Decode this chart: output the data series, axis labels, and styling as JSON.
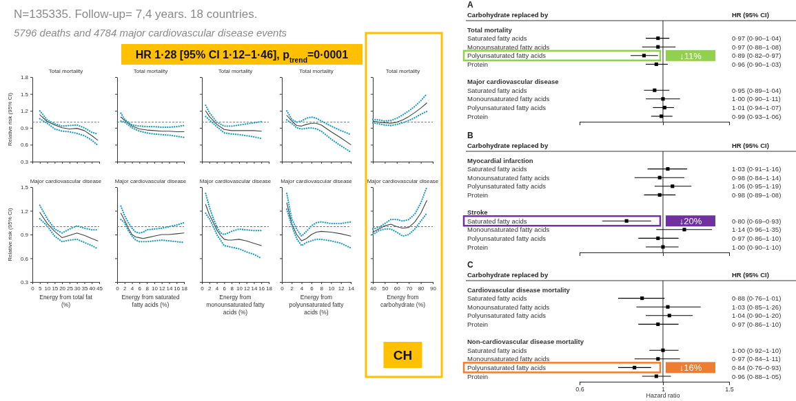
{
  "chart_data": [
    {
      "type": "line",
      "title": "Total mortality",
      "ylabel": "Relative risk (95% CI)",
      "tick_labels": "y",
      "annotations": [
        "N=135335. Follow-up= 7,4 years.  18 countries.",
        "5796 deaths and 4784 major cardiovascular disease events"
      ],
      "x": [
        5,
        10,
        15,
        20,
        25,
        30,
        35,
        40,
        44
      ],
      "series": [
        {
          "color": "#404040",
          "line_style": "solid",
          "values": [
            1.13,
            1.01,
            0.95,
            0.9,
            0.88,
            0.89,
            0.85,
            0.76,
            0.68
          ]
        },
        {
          "color": "#1b9dc4",
          "line_style": "dotted",
          "values": [
            1.2,
            1.04,
            0.97,
            0.93,
            0.94,
            0.95,
            0.9,
            0.82,
            0.79
          ]
        },
        {
          "color": "#1b9dc4",
          "line_style": "dotted",
          "values": [
            1.06,
            0.98,
            0.88,
            0.84,
            0.83,
            0.8,
            0.76,
            0.68,
            0.59
          ]
        }
      ],
      "xlim": [
        0,
        45
      ],
      "xticks": [
        0,
        5,
        10,
        15,
        20,
        25,
        30,
        35,
        40,
        45
      ],
      "ylim": [
        0.3,
        1.8
      ],
      "yticks": [
        0.3,
        0.6,
        0.9,
        1.2,
        1.5,
        1.8
      ],
      "ref_lines": [
        {
          "axis": "y",
          "value": 1,
          "line_style": "dashed",
          "color": "#5a6b78"
        }
      ]
    },
    {
      "type": "line",
      "title": "Total mortality",
      "tick_labels": false,
      "x": [
        1,
        2,
        4,
        6,
        8,
        10,
        12,
        14,
        16,
        18
      ],
      "series": [
        {
          "color": "#404040",
          "line_style": "solid",
          "values": [
            1.09,
            1.03,
            0.93,
            0.88,
            0.86,
            0.85,
            0.84,
            0.84,
            0.83,
            0.83
          ]
        },
        {
          "color": "#1b9dc4",
          "line_style": "dotted",
          "values": [
            1.16,
            1.05,
            0.95,
            0.93,
            0.92,
            0.92,
            0.91,
            0.91,
            0.92,
            0.94
          ]
        },
        {
          "color": "#1b9dc4",
          "line_style": "dotted",
          "values": [
            1.02,
            1.0,
            0.9,
            0.84,
            0.81,
            0.79,
            0.78,
            0.77,
            0.75,
            0.73
          ]
        }
      ],
      "xlim": [
        0,
        18
      ],
      "xticks": [
        0,
        2,
        4,
        6,
        8,
        10,
        12,
        14,
        16,
        18
      ],
      "ylim": [
        0.3,
        1.8
      ],
      "yticks": [
        0.3,
        0.6,
        0.9,
        1.2,
        1.5,
        1.8
      ],
      "ref_lines": [
        {
          "axis": "y",
          "value": 1,
          "line_style": "dashed",
          "color": "#5a6b78"
        }
      ]
    },
    {
      "type": "line",
      "title": "Total mortality",
      "tick_labels": false,
      "x": [
        1,
        2,
        4,
        6,
        8,
        10,
        12,
        14,
        16
      ],
      "series": [
        {
          "color": "#404040",
          "line_style": "solid",
          "values": [
            1.2,
            1.1,
            0.96,
            0.87,
            0.85,
            0.85,
            0.85,
            0.85,
            0.84
          ]
        },
        {
          "color": "#1b9dc4",
          "line_style": "dotted",
          "values": [
            1.3,
            1.17,
            1.0,
            0.93,
            0.93,
            0.95,
            0.97,
            0.99,
            1.01
          ]
        },
        {
          "color": "#1b9dc4",
          "line_style": "dotted",
          "values": [
            1.1,
            1.04,
            0.92,
            0.81,
            0.79,
            0.78,
            0.76,
            0.74,
            0.71
          ]
        }
      ],
      "xlim": [
        0,
        18
      ],
      "xticks": [
        0,
        2,
        4,
        6,
        8,
        10,
        12,
        14,
        16,
        18
      ],
      "ylim": [
        0.3,
        1.8
      ],
      "yticks": [
        0.3,
        0.6,
        0.9,
        1.2,
        1.5,
        1.8
      ],
      "ref_lines": [
        {
          "axis": "y",
          "value": 1,
          "line_style": "dashed",
          "color": "#5a6b78"
        }
      ]
    },
    {
      "type": "line",
      "title": "Total mortality",
      "tick_labels": false,
      "x": [
        1,
        2,
        3,
        4,
        5,
        6,
        7,
        8,
        10,
        12,
        14
      ],
      "series": [
        {
          "color": "#404040",
          "line_style": "solid",
          "values": [
            1.12,
            1.02,
            0.94,
            0.93,
            0.96,
            0.98,
            0.98,
            0.95,
            0.83,
            0.72,
            0.6
          ]
        },
        {
          "color": "#1b9dc4",
          "line_style": "dotted",
          "values": [
            1.2,
            1.05,
            1.0,
            1.02,
            1.07,
            1.09,
            1.07,
            1.02,
            0.93,
            0.85,
            0.78
          ]
        },
        {
          "color": "#1b9dc4",
          "line_style": "dotted",
          "values": [
            1.04,
            0.98,
            0.9,
            0.88,
            0.89,
            0.9,
            0.88,
            0.84,
            0.7,
            0.58,
            0.47
          ]
        }
      ],
      "xlim": [
        0,
        14
      ],
      "xticks": [
        0,
        2,
        4,
        6,
        8,
        10,
        12,
        14
      ],
      "ylim": [
        0.3,
        1.8
      ],
      "yticks": [
        0.3,
        0.6,
        0.9,
        1.2,
        1.5,
        1.8
      ],
      "ref_lines": [
        {
          "axis": "y",
          "value": 1,
          "line_style": "dashed",
          "color": "#5a6b78"
        }
      ]
    },
    {
      "type": "line",
      "title": "Total mortality",
      "tick_labels": false,
      "annotations": [
        "HR 1·28 [95% CI 1·12–1·46], p$_{trend}$=0·0001"
      ],
      "x": [
        40,
        45,
        50,
        55,
        60,
        65,
        70,
        75,
        80,
        85
      ],
      "series": [
        {
          "color": "#404040",
          "line_style": "solid",
          "values": [
            1.02,
            1.0,
            0.99,
            0.98,
            1.0,
            1.04,
            1.1,
            1.17,
            1.25,
            1.34
          ]
        },
        {
          "color": "#1b9dc4",
          "line_style": "dotted",
          "values": [
            1.05,
            1.04,
            1.02,
            1.03,
            1.07,
            1.13,
            1.2,
            1.28,
            1.38,
            1.5
          ]
        },
        {
          "color": "#1b9dc4",
          "line_style": "dotted",
          "values": [
            0.99,
            0.97,
            0.95,
            0.94,
            0.96,
            0.99,
            1.03,
            1.08,
            1.14,
            1.19
          ]
        }
      ],
      "xlim": [
        40,
        90
      ],
      "xticks": [
        40,
        50,
        60,
        70,
        80,
        90
      ],
      "ylim": [
        0.3,
        1.8
      ],
      "yticks": [
        0.3,
        0.6,
        0.9,
        1.2,
        1.5,
        1.8
      ],
      "ref_lines": [
        {
          "axis": "y",
          "value": 1,
          "line_style": "dashed",
          "color": "#5a6b78"
        }
      ]
    },
    {
      "type": "line",
      "title": "Major cardiovascular disease",
      "ylabel": "Relative risk (95% CI)",
      "xlabel": "Energy from total fat (%)",
      "x": [
        5,
        10,
        15,
        20,
        25,
        30,
        35,
        40,
        44
      ],
      "series": [
        {
          "color": "#404040",
          "line_style": "solid",
          "values": [
            1.18,
            1.04,
            0.94,
            0.86,
            0.89,
            0.92,
            0.89,
            0.85,
            0.82
          ]
        },
        {
          "color": "#1b9dc4",
          "line_style": "dotted",
          "values": [
            1.27,
            1.1,
            0.97,
            0.92,
            0.97,
            1.01,
            0.98,
            0.96,
            0.96
          ]
        },
        {
          "color": "#1b9dc4",
          "line_style": "dotted",
          "values": [
            1.1,
            1.01,
            0.88,
            0.81,
            0.83,
            0.84,
            0.8,
            0.76,
            0.72
          ]
        }
      ],
      "xlim": [
        0,
        45
      ],
      "xticks": [
        0,
        5,
        10,
        15,
        20,
        25,
        30,
        35,
        40,
        45
      ],
      "ylim": [
        0.3,
        1.5
      ],
      "yticks": [
        0.3,
        0.6,
        0.9,
        1.2,
        1.5
      ],
      "ref_lines": [
        {
          "axis": "y",
          "value": 1,
          "line_style": "dashed",
          "color": "#5a6b78"
        }
      ]
    },
    {
      "type": "line",
      "title": "Major cardiovascular disease",
      "xlabel": "Energy from saturated fatty acids (%)",
      "tick_labels": "x",
      "x": [
        1,
        2,
        3,
        4,
        5,
        6,
        7,
        8,
        10,
        12,
        14,
        16,
        18
      ],
      "series": [
        {
          "color": "#404040",
          "line_style": "solid",
          "values": [
            1.17,
            1.08,
            0.98,
            0.9,
            0.87,
            0.86,
            0.85,
            0.86,
            0.88,
            0.9,
            0.9,
            0.91,
            0.92
          ]
        },
        {
          "color": "#1b9dc4",
          "line_style": "dotted",
          "values": [
            1.26,
            1.14,
            1.05,
            0.98,
            0.93,
            0.92,
            0.93,
            0.96,
            0.97,
            0.98,
            1.0,
            1.02,
            1.05
          ]
        },
        {
          "color": "#1b9dc4",
          "line_style": "dotted",
          "values": [
            1.09,
            1.05,
            0.95,
            0.88,
            0.83,
            0.81,
            0.81,
            0.81,
            0.82,
            0.83,
            0.82,
            0.81,
            0.8
          ]
        }
      ],
      "xlim": [
        0,
        18
      ],
      "xticks": [
        0,
        2,
        4,
        6,
        8,
        10,
        12,
        14,
        16,
        18
      ],
      "ylim": [
        0.3,
        1.5
      ],
      "yticks": [
        0.3,
        0.6,
        0.9,
        1.2,
        1.5
      ],
      "ref_lines": [
        {
          "axis": "y",
          "value": 1,
          "line_style": "dashed",
          "color": "#5a6b78"
        }
      ]
    },
    {
      "type": "line",
      "title": "Major cardiovascular disease",
      "xlabel": "Energy from monounsaturated fatty acids (%)",
      "tick_labels": "x",
      "x": [
        1,
        2,
        3,
        4,
        5,
        6,
        7,
        8,
        10,
        12,
        14,
        16
      ],
      "series": [
        {
          "color": "#404040",
          "line_style": "solid",
          "values": [
            1.28,
            1.15,
            1.06,
            0.96,
            0.89,
            0.84,
            0.83,
            0.83,
            0.84,
            0.82,
            0.79,
            0.76
          ]
        },
        {
          "color": "#1b9dc4",
          "line_style": "dotted",
          "values": [
            1.42,
            1.25,
            1.11,
            1.0,
            0.92,
            0.9,
            0.92,
            0.94,
            0.97,
            0.96,
            0.95,
            0.95
          ]
        },
        {
          "color": "#1b9dc4",
          "line_style": "dotted",
          "values": [
            1.17,
            1.1,
            1.01,
            0.9,
            0.83,
            0.76,
            0.75,
            0.74,
            0.72,
            0.68,
            0.65,
            0.6
          ]
        }
      ],
      "xlim": [
        0,
        18
      ],
      "xticks": [
        0,
        2,
        4,
        6,
        8,
        10,
        12,
        14,
        16,
        18
      ],
      "ylim": [
        0.3,
        1.5
      ],
      "yticks": [
        0.3,
        0.6,
        0.9,
        1.2,
        1.5
      ],
      "ref_lines": [
        {
          "axis": "y",
          "value": 1,
          "line_style": "dashed",
          "color": "#5a6b78"
        }
      ]
    },
    {
      "type": "line",
      "title": "Major cardiovascular disease",
      "xlabel": "Energy from polyunsaturated fatty acids (%)",
      "tick_labels": "x",
      "x": [
        1,
        2,
        3,
        4,
        5,
        6,
        7,
        8,
        10,
        12,
        14
      ],
      "series": [
        {
          "color": "#404040",
          "line_style": "solid",
          "values": [
            1.3,
            1.04,
            0.9,
            0.82,
            0.85,
            0.9,
            0.93,
            0.94,
            0.93,
            0.91,
            0.88
          ]
        },
        {
          "color": "#1b9dc4",
          "line_style": "dotted",
          "values": [
            1.42,
            1.1,
            0.97,
            0.88,
            0.94,
            1.01,
            1.05,
            1.06,
            1.04,
            1.04,
            1.06
          ]
        },
        {
          "color": "#1b9dc4",
          "line_style": "dotted",
          "values": [
            1.22,
            1.01,
            0.85,
            0.76,
            0.8,
            0.82,
            0.84,
            0.84,
            0.82,
            0.79,
            0.73
          ]
        }
      ],
      "xlim": [
        0,
        14
      ],
      "xticks": [
        0,
        2,
        4,
        6,
        8,
        10,
        12,
        14
      ],
      "ylim": [
        0.3,
        1.5
      ],
      "yticks": [
        0.3,
        0.6,
        0.9,
        1.2,
        1.5
      ],
      "ref_lines": [
        {
          "axis": "y",
          "value": 1,
          "line_style": "dashed",
          "color": "#5a6b78"
        }
      ]
    },
    {
      "type": "line",
      "title": "Major cardiovascular disease",
      "xlabel": "Energy from carbohydrate (%)",
      "tick_labels": "x",
      "annotations": [
        "CH"
      ],
      "x": [
        40,
        45,
        50,
        55,
        60,
        65,
        70,
        75,
        80,
        85
      ],
      "series": [
        {
          "color": "#404040",
          "line_style": "solid",
          "values": [
            0.93,
            0.97,
            1.01,
            1.03,
            1.0,
            0.98,
            0.99,
            1.06,
            1.17,
            1.33
          ]
        },
        {
          "color": "#1b9dc4",
          "line_style": "dotted",
          "values": [
            0.97,
            0.99,
            1.04,
            1.09,
            1.09,
            1.07,
            1.09,
            1.16,
            1.3,
            1.5
          ]
        },
        {
          "color": "#1b9dc4",
          "line_style": "dotted",
          "values": [
            0.9,
            0.95,
            0.97,
            0.97,
            0.93,
            0.88,
            0.9,
            0.97,
            1.07,
            1.17
          ]
        }
      ],
      "xlim": [
        40,
        90
      ],
      "xticks": [
        40,
        50,
        60,
        70,
        80,
        90
      ],
      "ylim": [
        0.3,
        1.5
      ],
      "yticks": [
        0.3,
        0.6,
        0.9,
        1.2,
        1.5
      ],
      "ref_lines": [
        {
          "axis": "y",
          "value": 1,
          "line_style": "dashed",
          "color": "#5a6b78"
        }
      ]
    },
    {
      "type": "scatter",
      "title": "A",
      "ylabel": "Carbohydrate replaced by",
      "orientation": "horizontal",
      "tick_labels": "y",
      "marker": "square",
      "color": "#000000",
      "log": "x",
      "categories": [
        "Total mortality",
        "Saturated fatty acids",
        "Monounsaturated fatty acids",
        "Polyunsaturated fatty acids",
        "Protein",
        null,
        "Major cardiovascular disease",
        "Saturated fatty acids",
        "Monounsaturated fatty acids",
        "Polyunsaturated fatty acids",
        "Protein"
      ],
      "values": [
        null,
        0.97,
        0.97,
        0.89,
        0.96,
        null,
        null,
        0.95,
        1.0,
        1.01,
        0.99
      ],
      "errors": [
        null,
        [
          0.9,
          1.04
        ],
        [
          0.88,
          1.08
        ],
        [
          0.82,
          0.97
        ],
        [
          0.9,
          1.03
        ],
        null,
        null,
        [
          0.89,
          1.04
        ],
        [
          0.9,
          1.11
        ],
        [
          0.94,
          1.07
        ],
        [
          0.93,
          1.06
        ]
      ],
      "value_labels": [
        null,
        "0·97 (0·90–1·04)",
        "0·97 (0·88–1·08)",
        "0·89 (0·82–0·97)",
        "0·96 (0·90–1·03)",
        null,
        null,
        "0·95 (0·89–1·04)",
        "1·00 (0·90–1·11)",
        "1·01 (0·94–1·07)",
        "0·99 (0·93–1·06)"
      ],
      "xlim": [
        0.6,
        1.5
      ],
      "xticks": [
        0.6,
        1,
        1.5
      ],
      "ref_lines": [
        {
          "axis": "x",
          "value": 1
        }
      ],
      "annotations": [
        "HR (95% CI)",
        "↓11%"
      ]
    },
    {
      "type": "scatter",
      "title": "B",
      "ylabel": "Carbohydrate replaced by",
      "orientation": "horizontal",
      "tick_labels": "y",
      "marker": "square",
      "color": "#000000",
      "log": "x",
      "categories": [
        "Myocardial infarction",
        "Saturated fatty acids",
        "Monounsaturated fatty acids",
        "Polyunsaturated fatty acids",
        "Protein",
        null,
        "Stroke",
        "Saturated fatty acids",
        "Monounsaturated fatty acids",
        "Polyunsaturated fatty acids",
        "Protein"
      ],
      "values": [
        null,
        1.03,
        0.98,
        1.06,
        0.98,
        null,
        null,
        0.8,
        1.14,
        0.97,
        1.0
      ],
      "errors": [
        null,
        [
          0.91,
          1.16
        ],
        [
          0.84,
          1.14
        ],
        [
          0.95,
          1.19
        ],
        [
          0.89,
          1.08
        ],
        null,
        null,
        [
          0.69,
          0.93
        ],
        [
          0.96,
          1.35
        ],
        [
          0.86,
          1.1
        ],
        [
          0.9,
          1.1
        ]
      ],
      "value_labels": [
        null,
        "1·03 (0·91–1·16)",
        "0·98 (0·84–1·14)",
        "1·06 (0·95–1·19)",
        "0·98 (0·89–1·08)",
        null,
        null,
        "0·80 (0·69–0·93)",
        "1·14 (0·96–1·35)",
        "0·97 (0·86–1·10)",
        "1·00 (0·90–1·10)"
      ],
      "xlim": [
        0.6,
        1.5
      ],
      "xticks": [
        0.6,
        1,
        1.5
      ],
      "ref_lines": [
        {
          "axis": "x",
          "value": 1
        }
      ],
      "annotations": [
        "HR (95% CI)",
        "↓20%"
      ]
    },
    {
      "type": "scatter",
      "title": "C",
      "ylabel": "Carbohydrate replaced by",
      "xlabel": "Hazard ratio",
      "orientation": "horizontal",
      "marker": "square",
      "color": "#000000",
      "log": "x",
      "categories": [
        "Cardiovascular disease mortality",
        "Saturated fatty acids",
        "Monounsaturated fatty acids",
        "Polyunsaturated fatty acids",
        "Protein",
        null,
        "Non-cardiovascular disease mortality",
        "Saturated fatty acids",
        "Monounsaturated fatty acids",
        "Polyunsaturated fatty acids",
        "Protein"
      ],
      "values": [
        null,
        0.88,
        1.03,
        1.04,
        0.97,
        null,
        null,
        1.0,
        0.97,
        0.84,
        0.96
      ],
      "errors": [
        null,
        [
          0.76,
          1.01
        ],
        [
          0.85,
          1.26
        ],
        [
          0.9,
          1.2
        ],
        [
          0.86,
          1.1
        ],
        null,
        null,
        [
          0.92,
          1.1
        ],
        [
          0.84,
          1.11
        ],
        [
          0.76,
          0.93
        ],
        [
          0.88,
          1.05
        ]
      ],
      "value_labels": [
        null,
        "0·88 (0·76–1·01)",
        "1·03 (0·85–1·26)",
        "1·04 (0·90–1·20)",
        "0·97 (0·86–1·10)",
        null,
        null,
        "1·00 (0·92–1·10)",
        "0·97 (0·84–1·11)",
        "0·84 (0·76–0·93)",
        "0·96 (0·88–1·05)"
      ],
      "xlim": [
        0.6,
        1.5
      ],
      "xticks": [
        0.6,
        1,
        1.5
      ],
      "ref_lines": [
        {
          "axis": "x",
          "value": 1
        }
      ],
      "annotations": [
        "HR (95% CI)",
        "↓16%"
      ]
    }
  ]
}
